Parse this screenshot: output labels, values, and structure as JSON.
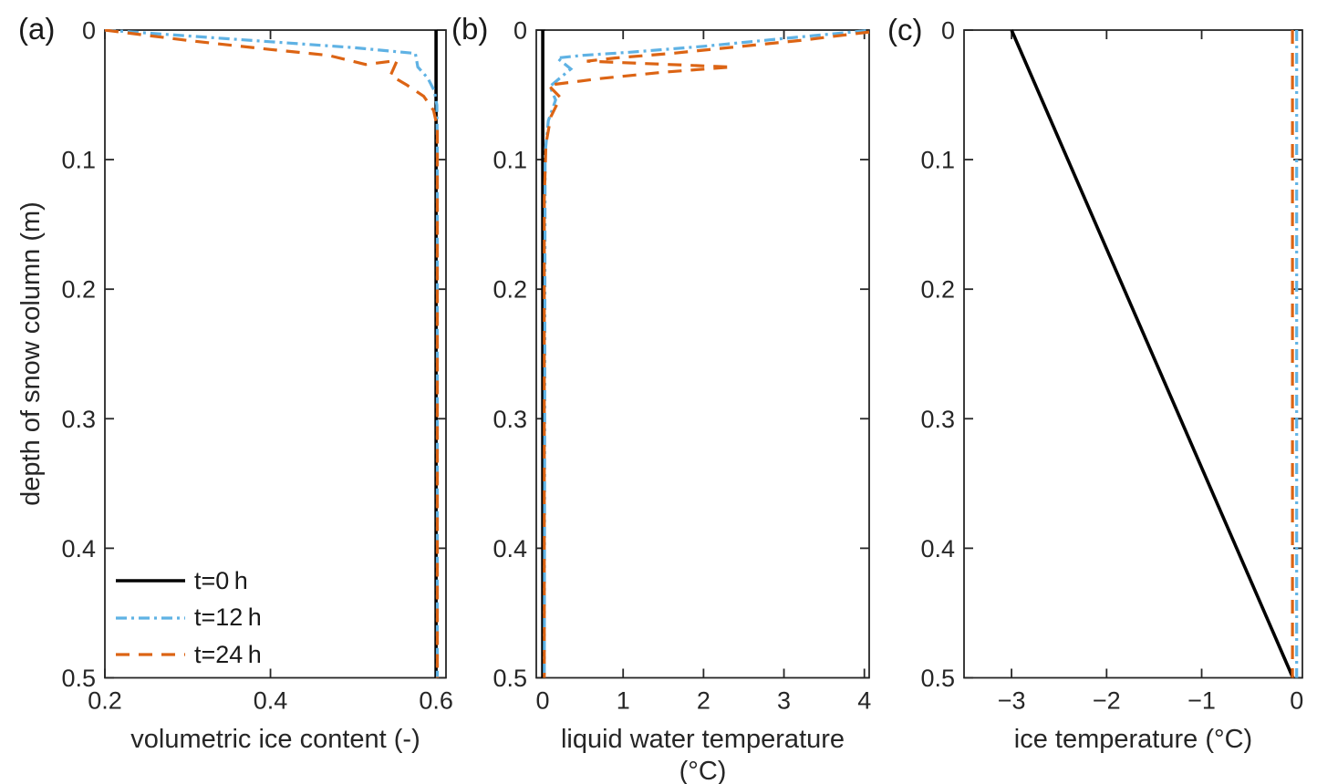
{
  "figure": {
    "background": "#ffffff",
    "axis_color": "#262626",
    "text_color": "#1a1a1a"
  },
  "colors": {
    "t0": "#000000",
    "t12": "#5FB2E4",
    "t24": "#DC6414"
  },
  "chart_data": [
    {
      "type": "line",
      "panel_label": "(a)",
      "xlabel": "volumetric ice content (-)",
      "ylabel": "depth of snow column (m)",
      "xlim": [
        0.2,
        0.612
      ],
      "ylim": [
        0,
        0.5
      ],
      "y_axis": "depth, increasing downward",
      "grid": false,
      "xticks": {
        "values": [
          0.2,
          0.4,
          0.6
        ],
        "labels": [
          "0.2",
          "0.4",
          "0.6"
        ]
      },
      "yticks": {
        "values": [
          0,
          0.1,
          0.2,
          0.3,
          0.4,
          0.5
        ],
        "labels": [
          "0",
          "0.1",
          "0.2",
          "0.3",
          "0.4",
          "0.5"
        ]
      },
      "legend": {
        "position": "bottom-left",
        "items": [
          "t=0 h",
          "t=12 h",
          "t=24 h"
        ]
      },
      "series": [
        {
          "name": "t=0 h",
          "color": "#000000",
          "style": "solid",
          "width": 3.6,
          "points": [
            [
              0.6,
              0
            ],
            [
              0.6,
              0.5
            ]
          ]
        },
        {
          "name": "t=12 h",
          "color": "#5FB2E4",
          "style": "dashdot",
          "width": 3.2,
          "points": [
            [
              0.2,
              0
            ],
            [
              0.3,
              0.0045
            ],
            [
              0.4,
              0.009
            ],
            [
              0.5,
              0.0135
            ],
            [
              0.575,
              0.018
            ],
            [
              0.578,
              0.0285
            ],
            [
              0.59,
              0.037
            ],
            [
              0.598,
              0.047
            ],
            [
              0.601,
              0.058
            ],
            [
              0.6015,
              0.09
            ],
            [
              0.6015,
              0.5
            ]
          ]
        },
        {
          "name": "t=24 h",
          "color": "#DC6414",
          "style": "dashed",
          "width": 3.2,
          "points": [
            [
              0.2,
              0
            ],
            [
              0.3,
              0.008
            ],
            [
              0.4,
              0.015
            ],
            [
              0.47,
              0.0195
            ],
            [
              0.515,
              0.0265
            ],
            [
              0.553,
              0.0235
            ],
            [
              0.545,
              0.035
            ],
            [
              0.565,
              0.0425
            ],
            [
              0.585,
              0.051
            ],
            [
              0.597,
              0.062
            ],
            [
              0.6015,
              0.075
            ],
            [
              0.6015,
              0.5
            ]
          ]
        }
      ]
    },
    {
      "type": "line",
      "panel_label": "(b)",
      "xlabel": "liquid water temperature (°C)",
      "ylabel": "",
      "xlim": [
        -0.08,
        4.06
      ],
      "ylim": [
        0,
        0.5
      ],
      "y_axis": "depth, increasing downward",
      "grid": false,
      "xticks": {
        "values": [
          0,
          1,
          2,
          3,
          4
        ],
        "labels": [
          "0",
          "1",
          "2",
          "3",
          "4"
        ]
      },
      "yticks": {
        "values": [
          0,
          0.1,
          0.2,
          0.3,
          0.4,
          0.5
        ],
        "labels": [
          "0",
          "0.1",
          "0.2",
          "0.3",
          "0.4",
          "0.5"
        ]
      },
      "series": [
        {
          "name": "t=0 h",
          "color": "#000000",
          "style": "solid",
          "width": 3.6,
          "points": [
            [
              0,
              0
            ],
            [
              0,
              0.5
            ]
          ]
        },
        {
          "name": "t=12 h",
          "color": "#5FB2E4",
          "style": "dashdot",
          "width": 3.2,
          "points": [
            [
              4.02,
              0.0005
            ],
            [
              3.0,
              0.0065
            ],
            [
              2.0,
              0.0125
            ],
            [
              1.1,
              0.017
            ],
            [
              0.5,
              0.0195
            ],
            [
              0.18,
              0.0215
            ],
            [
              0.35,
              0.03
            ],
            [
              0.09,
              0.0435
            ],
            [
              0.16,
              0.054
            ],
            [
              0.07,
              0.07
            ],
            [
              0.03,
              0.095
            ],
            [
              0.02,
              0.5
            ]
          ]
        },
        {
          "name": "t=24 h",
          "color": "#DC6414",
          "style": "dashed",
          "width": 3.2,
          "points": [
            [
              4.06,
              0.0015
            ],
            [
              3.2,
              0.008
            ],
            [
              2.4,
              0.013
            ],
            [
              1.6,
              0.018
            ],
            [
              0.9,
              0.0215
            ],
            [
              0.55,
              0.024
            ],
            [
              2.35,
              0.0285
            ],
            [
              1.5,
              0.0325
            ],
            [
              0.7,
              0.0375
            ],
            [
              0.07,
              0.0425
            ],
            [
              0.22,
              0.052
            ],
            [
              0.1,
              0.067
            ],
            [
              0.04,
              0.088
            ],
            [
              0.02,
              0.13
            ],
            [
              0.02,
              0.5
            ]
          ]
        }
      ]
    },
    {
      "type": "line",
      "panel_label": "(c)",
      "xlabel": "ice temperature (°C)",
      "ylabel": "",
      "xlim": [
        -3.5,
        0.06
      ],
      "ylim": [
        0,
        0.5
      ],
      "y_axis": "depth, increasing downward",
      "grid": false,
      "xticks": {
        "values": [
          -3,
          -2,
          -1,
          0
        ],
        "labels": [
          "−3",
          "−2",
          "−1",
          "0"
        ]
      },
      "yticks": {
        "values": [
          0,
          0.1,
          0.2,
          0.3,
          0.4,
          0.5
        ],
        "labels": [
          "0",
          "0.1",
          "0.2",
          "0.3",
          "0.4",
          "0.5"
        ]
      },
      "series": [
        {
          "name": "t=0 h",
          "color": "#000000",
          "style": "solid",
          "width": 3.6,
          "points": [
            [
              -3.0,
              0
            ],
            [
              -0.04,
              0.5
            ]
          ]
        },
        {
          "name": "t=12 h",
          "color": "#5FB2E4",
          "style": "dashdot",
          "width": 3.2,
          "points": [
            [
              0.0,
              0
            ],
            [
              0.0,
              0.5
            ]
          ]
        },
        {
          "name": "t=24 h",
          "color": "#DC6414",
          "style": "dashed",
          "width": 3.2,
          "points": [
            [
              -0.045,
              0
            ],
            [
              -0.045,
              0.5
            ]
          ]
        }
      ]
    }
  ]
}
